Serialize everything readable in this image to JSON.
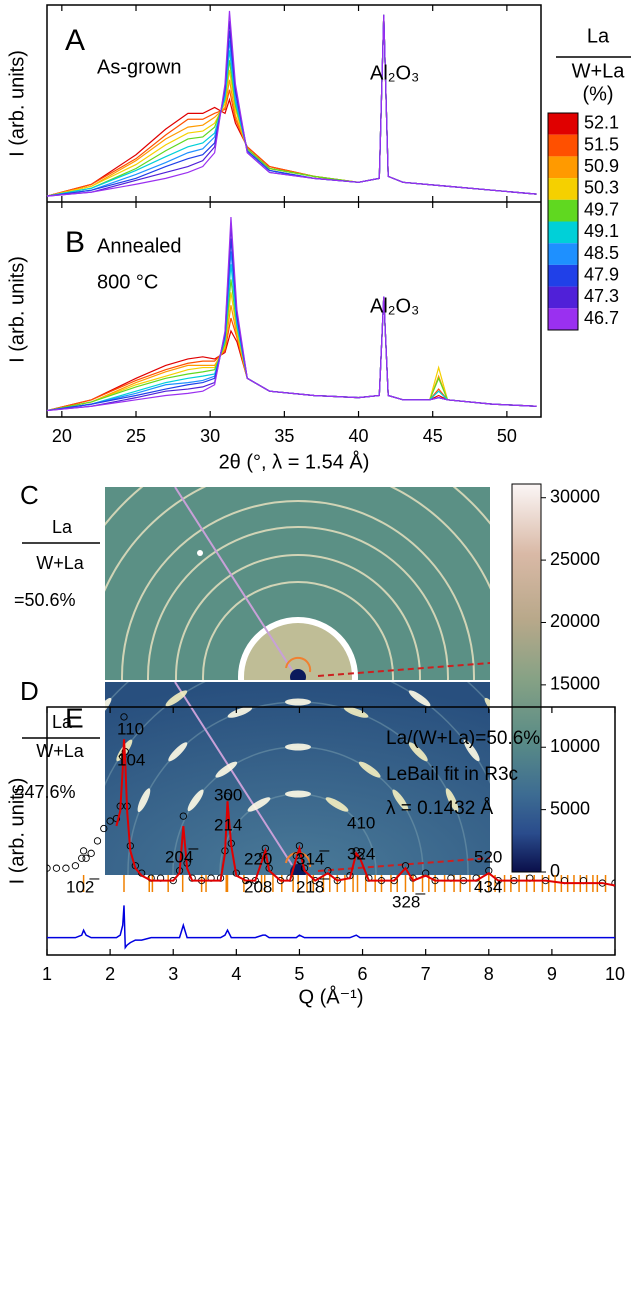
{
  "chart_data": [
    {
      "type": "line",
      "panel": "A",
      "annotations": [
        "As-grown",
        "Al₂O₃"
      ],
      "ylabel": "I (arb. units)",
      "legend_title": [
        "La",
        "W+La",
        "(%)"
      ],
      "x": [
        19,
        22,
        25,
        27,
        28.5,
        29.5,
        30.3,
        31.0,
        31.3,
        31.7,
        32.5,
        34,
        37,
        40,
        41.4,
        41.7,
        42.0,
        43,
        46,
        49,
        52
      ],
      "xlim": [
        19,
        52.3
      ],
      "ylim": [
        0,
        10
      ],
      "series": [
        {
          "name": "52.1",
          "color": "#e00000",
          "values": [
            0.3,
            0.9,
            2.4,
            3.7,
            4.5,
            4.5,
            4.8,
            4.5,
            5.2,
            4.0,
            2.8,
            1.8,
            1.3,
            1.0,
            1.2,
            9.5,
            1.3,
            1.0,
            0.8,
            0.6,
            0.4
          ]
        },
        {
          "name": "51.5",
          "color": "#ff5000",
          "values": [
            0.3,
            0.9,
            2.2,
            3.4,
            4.2,
            4.2,
            4.5,
            4.7,
            5.7,
            4.2,
            2.8,
            1.8,
            1.3,
            1.0,
            1.2,
            9.5,
            1.3,
            1.0,
            0.8,
            0.6,
            0.4
          ]
        },
        {
          "name": "50.9",
          "color": "#ff9a00",
          "values": [
            0.3,
            0.8,
            2.1,
            3.2,
            3.8,
            3.9,
            4.3,
            4.8,
            6.2,
            4.4,
            2.7,
            1.7,
            1.3,
            1.0,
            1.2,
            9.5,
            1.3,
            1.0,
            0.8,
            0.6,
            0.4
          ]
        },
        {
          "name": "50.3",
          "color": "#f5d000",
          "values": [
            0.3,
            0.8,
            1.9,
            2.9,
            3.5,
            3.6,
            4.0,
            5.0,
            6.7,
            4.7,
            2.7,
            1.7,
            1.3,
            1.0,
            1.2,
            9.5,
            1.3,
            1.0,
            0.8,
            0.6,
            0.4
          ]
        },
        {
          "name": "49.7",
          "color": "#60d820",
          "values": [
            0.3,
            0.7,
            1.7,
            2.6,
            3.2,
            3.3,
            3.8,
            5.2,
            7.2,
            4.9,
            2.7,
            1.7,
            1.3,
            1.0,
            1.2,
            9.5,
            1.3,
            1.0,
            0.8,
            0.6,
            0.4
          ]
        },
        {
          "name": "49.1",
          "color": "#00d0d8",
          "values": [
            0.3,
            0.7,
            1.6,
            2.3,
            2.8,
            3.0,
            3.5,
            5.3,
            7.7,
            5.1,
            2.6,
            1.6,
            1.2,
            1.0,
            1.2,
            9.5,
            1.3,
            1.0,
            0.8,
            0.6,
            0.4
          ]
        },
        {
          "name": "48.5",
          "color": "#1e90ff",
          "values": [
            0.3,
            0.6,
            1.4,
            2.0,
            2.5,
            2.7,
            3.3,
            5.5,
            8.2,
            5.3,
            2.6,
            1.6,
            1.2,
            1.0,
            1.2,
            9.5,
            1.3,
            1.0,
            0.8,
            0.6,
            0.4
          ]
        },
        {
          "name": "47.9",
          "color": "#2040e8",
          "values": [
            0.3,
            0.6,
            1.2,
            1.8,
            2.2,
            2.4,
            3.0,
            5.7,
            8.7,
            5.6,
            2.6,
            1.6,
            1.2,
            1.0,
            1.2,
            9.5,
            1.3,
            1.0,
            0.8,
            0.6,
            0.4
          ]
        },
        {
          "name": "47.3",
          "color": "#5020d8",
          "values": [
            0.3,
            0.5,
            1.1,
            1.5,
            1.8,
            2.1,
            2.8,
            5.8,
            9.2,
            5.8,
            2.5,
            1.5,
            1.2,
            1.0,
            1.2,
            9.5,
            1.3,
            1.0,
            0.8,
            0.6,
            0.4
          ]
        },
        {
          "name": "46.7",
          "color": "#9a30f0",
          "values": [
            0.3,
            0.5,
            0.9,
            1.2,
            1.5,
            1.8,
            2.5,
            6.0,
            9.7,
            6.0,
            2.5,
            1.5,
            1.2,
            1.0,
            1.2,
            9.5,
            1.3,
            1.0,
            0.8,
            0.6,
            0.4
          ]
        }
      ]
    },
    {
      "type": "line",
      "panel": "B",
      "annotations": [
        "Annealed",
        "800 °C",
        "Al₂O₃"
      ],
      "ylabel": "I (arb. units)",
      "xlabel": "2θ (°, λ = 1.54 Å)",
      "x": [
        19,
        22,
        25,
        27,
        28.5,
        29.5,
        30.3,
        31.0,
        31.4,
        31.8,
        32.5,
        34,
        37,
        40,
        41.4,
        41.7,
        42.0,
        43,
        44.8,
        45.4,
        46,
        49,
        52
      ],
      "xlim": [
        19,
        52.3
      ],
      "xticks": [
        20,
        25,
        30,
        35,
        40,
        45,
        50
      ],
      "ylim": [
        0,
        10
      ],
      "series": [
        {
          "color": "#e00000",
          "values": [
            0.3,
            0.8,
            1.8,
            2.4,
            2.7,
            2.8,
            2.7,
            3.0,
            4.0,
            3.5,
            1.8,
            1.2,
            1.0,
            0.9,
            1.0,
            5.6,
            1.0,
            0.8,
            0.8,
            1.0,
            0.8,
            0.6,
            0.5
          ]
        },
        {
          "color": "#ff5000",
          "values": [
            0.3,
            0.8,
            1.7,
            2.2,
            2.5,
            2.6,
            2.6,
            3.1,
            4.6,
            3.7,
            1.8,
            1.2,
            1.0,
            0.9,
            1.0,
            5.6,
            1.0,
            0.8,
            0.8,
            1.3,
            0.8,
            0.6,
            0.5
          ]
        },
        {
          "color": "#ff9a00",
          "values": [
            0.3,
            0.7,
            1.6,
            2.1,
            2.4,
            2.4,
            2.4,
            3.2,
            5.2,
            3.8,
            1.8,
            1.2,
            1.0,
            0.9,
            1.0,
            5.6,
            1.0,
            0.8,
            0.8,
            1.9,
            0.8,
            0.6,
            0.5
          ]
        },
        {
          "color": "#f5d000",
          "values": [
            0.3,
            0.7,
            1.5,
            1.9,
            2.2,
            2.3,
            2.3,
            3.3,
            5.8,
            4.0,
            1.8,
            1.2,
            1.0,
            0.9,
            1.0,
            5.6,
            1.0,
            0.8,
            0.8,
            2.3,
            0.8,
            0.6,
            0.5
          ]
        },
        {
          "color": "#60d820",
          "values": [
            0.3,
            0.7,
            1.4,
            1.8,
            2.0,
            2.1,
            2.2,
            3.4,
            6.4,
            4.2,
            1.8,
            1.2,
            1.0,
            0.9,
            1.0,
            5.6,
            1.0,
            0.8,
            0.8,
            1.8,
            0.8,
            0.6,
            0.5
          ]
        },
        {
          "color": "#00d0d8",
          "values": [
            0.3,
            0.6,
            1.2,
            1.6,
            1.8,
            1.9,
            2.0,
            3.6,
            7.1,
            4.3,
            1.8,
            1.2,
            1.0,
            0.9,
            1.0,
            5.6,
            1.0,
            0.8,
            0.8,
            1.2,
            0.8,
            0.6,
            0.5
          ]
        },
        {
          "color": "#1e90ff",
          "values": [
            0.3,
            0.6,
            1.1,
            1.5,
            1.6,
            1.7,
            1.9,
            3.7,
            7.7,
            4.5,
            1.8,
            1.2,
            1.0,
            0.9,
            1.0,
            5.6,
            1.0,
            0.8,
            0.8,
            0.9,
            0.8,
            0.6,
            0.5
          ]
        },
        {
          "color": "#2040e8",
          "values": [
            0.3,
            0.6,
            1.0,
            1.3,
            1.5,
            1.6,
            1.8,
            3.8,
            8.3,
            4.7,
            1.8,
            1.2,
            1.0,
            0.9,
            1.0,
            5.6,
            1.0,
            0.8,
            0.8,
            0.9,
            0.8,
            0.6,
            0.5
          ]
        },
        {
          "color": "#5020d8",
          "values": [
            0.3,
            0.5,
            0.9,
            1.2,
            1.3,
            1.4,
            1.6,
            3.9,
            8.9,
            4.8,
            1.8,
            1.2,
            1.0,
            0.9,
            1.0,
            5.6,
            1.0,
            0.8,
            0.8,
            0.9,
            0.8,
            0.6,
            0.5
          ]
        },
        {
          "color": "#9a30f0",
          "values": [
            0.3,
            0.5,
            0.8,
            1.0,
            1.1,
            1.2,
            1.5,
            4.0,
            9.3,
            5.0,
            1.8,
            1.2,
            1.0,
            0.9,
            1.0,
            5.6,
            1.0,
            0.8,
            0.8,
            0.9,
            0.8,
            0.6,
            0.5
          ]
        }
      ]
    },
    {
      "type": "image",
      "panels": [
        {
          "panel": "C",
          "label": [
            "La",
            "W+La",
            "=50.6%"
          ]
        },
        {
          "panel": "D",
          "label": [
            "La",
            "W+La",
            "=47.6%"
          ]
        }
      ],
      "colorbar": {
        "clim": [
          0,
          31100
        ],
        "ticks": [
          0,
          5000,
          10000,
          15000,
          20000,
          25000,
          30000
        ]
      }
    },
    {
      "type": "powder",
      "panel": "E",
      "ylabel": "I (arb. units)",
      "xlabel": "Q (Å⁻¹)",
      "annotations": [
        "La/(W+La)=50.6%",
        "LeBail fit in R3c",
        "λ = 0.1432 Å"
      ],
      "peak_labels": [
        "102̅",
        "110",
        "104",
        "204̅",
        "300",
        "214",
        "220",
        "208",
        "314̅",
        "218̅",
        "410",
        "324",
        "328̅",
        "520",
        "434"
      ],
      "xlim": [
        1,
        10
      ],
      "xticks": [
        1,
        2,
        3,
        4,
        5,
        6,
        7,
        8,
        9,
        10
      ],
      "ylim": [
        0,
        100
      ],
      "x": [
        1.0,
        1.15,
        1.3,
        1.45,
        1.55,
        1.58,
        1.62,
        1.7,
        1.8,
        1.9,
        2.0,
        2.1,
        2.16,
        2.2,
        2.22,
        2.24,
        2.27,
        2.32,
        2.4,
        2.5,
        2.65,
        2.8,
        3.0,
        3.1,
        3.16,
        3.22,
        3.3,
        3.45,
        3.6,
        3.75,
        3.82,
        3.86,
        3.92,
        4.0,
        4.15,
        4.3,
        4.42,
        4.46,
        4.52,
        4.7,
        4.85,
        4.95,
        5.0,
        5.08,
        5.25,
        5.45,
        5.6,
        5.8,
        5.9,
        5.96,
        6.1,
        6.3,
        6.5,
        6.68,
        6.8,
        7.0,
        7.15,
        7.4,
        7.6,
        7.8,
        8.0,
        8.15,
        8.4,
        8.65,
        8.9,
        9.2,
        9.5,
        9.8,
        10.0
      ],
      "observed": {
        "color": "#000000",
        "values": [
          35,
          35,
          35,
          36,
          39,
          42,
          39,
          41,
          46,
          51,
          54,
          55,
          60,
          80,
          96,
          82,
          60,
          44,
          36,
          33,
          31,
          31,
          30,
          34,
          56,
          37,
          31,
          30,
          31,
          31,
          42,
          64,
          45,
          33,
          30,
          30,
          40,
          43,
          35,
          30,
          31,
          40,
          44,
          35,
          30,
          34,
          30,
          32,
          42,
          40,
          31,
          30,
          30,
          36,
          31,
          33,
          30,
          31,
          30,
          31,
          34,
          30,
          30,
          31,
          30,
          30,
          30,
          29,
          29
        ]
      },
      "fit": {
        "color": "#e00000",
        "values": [
          null,
          null,
          null,
          null,
          null,
          null,
          null,
          null,
          null,
          null,
          null,
          52,
          58,
          75,
          87,
          78,
          58,
          42,
          35,
          32,
          30,
          30,
          30,
          33,
          52,
          35,
          30,
          30,
          30,
          30,
          41,
          62,
          44,
          32,
          30,
          30,
          39,
          42,
          34,
          30,
          30,
          39,
          43,
          34,
          30,
          33,
          30,
          31,
          41,
          39,
          30,
          30,
          30,
          35,
          30,
          32,
          30,
          30,
          30,
          30,
          33,
          30,
          30,
          30,
          30,
          29,
          29,
          29,
          28
        ]
      },
      "difference": {
        "color": "#0000e0",
        "values": [
          7,
          7,
          7,
          7,
          8,
          10,
          8,
          7,
          7,
          7,
          7,
          7,
          8,
          12,
          20,
          3,
          4,
          5,
          6,
          6,
          7,
          7,
          7,
          7,
          12,
          7,
          7,
          7,
          7,
          7,
          8,
          10,
          7,
          7,
          7,
          7,
          8,
          8,
          7,
          7,
          7,
          7,
          8,
          7,
          7,
          7,
          7,
          7,
          8,
          7,
          7,
          7,
          7,
          7,
          7,
          7,
          7,
          7,
          7,
          7,
          7,
          7,
          7,
          7,
          7,
          7,
          7,
          7,
          7
        ]
      },
      "reflections": {
        "color": "#f08000",
        "x": [
          1.58,
          2.22,
          2.62,
          2.67,
          2.92,
          3.15,
          3.45,
          3.52,
          3.84,
          3.86,
          4.12,
          4.4,
          4.45,
          4.58,
          4.72,
          4.9,
          4.98,
          5.12,
          5.22,
          5.38,
          5.48,
          5.6,
          5.72,
          5.85,
          5.92,
          6.05,
          6.2,
          6.3,
          6.45,
          6.55,
          6.68,
          6.8,
          6.95,
          7.05,
          7.15,
          7.3,
          7.45,
          7.55,
          7.7,
          7.85,
          8.0,
          8.1,
          8.25,
          8.35,
          8.48,
          8.6,
          8.72,
          8.85,
          8.95,
          9.05,
          9.15,
          9.25,
          9.35,
          9.45,
          9.55,
          9.65,
          9.72,
          9.85
        ]
      }
    }
  ]
}
